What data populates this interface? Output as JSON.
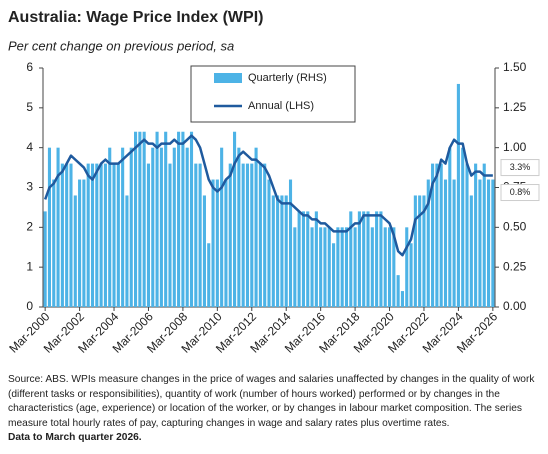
{
  "chart_data": {
    "type": "combo",
    "title": "Australia: Wage Price Index (WPI)",
    "subtitle": "Per cent change on previous period, sa",
    "notes": [
      "Source: ABS.  WPIs measure changes in the price of wages and salaries unaffected by changes in the quality of work (different tasks or responsibilities), quantity of work (number of hours worked) performed or by changes in the characteristics (age, experience) or location of the worker, or by changes in labour market composition. The series measure total hourly rates of pay, capturing changes in wage and salary rates plus overtime rates.",
      "Data to March quarter 2026."
    ],
    "categories": [
      "Mar-2000",
      null,
      null,
      null,
      null,
      null,
      null,
      null,
      "Mar-2002",
      null,
      null,
      null,
      null,
      null,
      null,
      null,
      "Mar-2004",
      null,
      null,
      null,
      null,
      null,
      null,
      null,
      "Mar-2006",
      null,
      null,
      null,
      null,
      null,
      null,
      null,
      "Mar-2008",
      null,
      null,
      null,
      null,
      null,
      null,
      null,
      "Mar-2010",
      null,
      null,
      null,
      null,
      null,
      null,
      null,
      "Mar-2012",
      null,
      null,
      null,
      null,
      null,
      null,
      null,
      "Mar-2014",
      null,
      null,
      null,
      null,
      null,
      null,
      null,
      "Mar-2016",
      null,
      null,
      null,
      null,
      null,
      null,
      null,
      "Mar-2018",
      null,
      null,
      null,
      null,
      null,
      null,
      null,
      "Mar-2020",
      null,
      null,
      null,
      null,
      null,
      null,
      null,
      "Mar-2022",
      null,
      null,
      null,
      null,
      null,
      null,
      null,
      "Mar-2024",
      null,
      null,
      null,
      null,
      null,
      null,
      null,
      "Mar-2026"
    ],
    "series": [
      {
        "name": "Quarterly (RHS)",
        "type": "bar",
        "axis": "y2",
        "color": "#4db3e6",
        "values": [
          0.6,
          1.0,
          0.8,
          1.0,
          0.9,
          0.9,
          0.9,
          0.7,
          0.8,
          0.8,
          0.9,
          0.9,
          0.9,
          0.9,
          0.9,
          1.0,
          0.9,
          0.9,
          1.0,
          0.7,
          1.0,
          1.1,
          1.1,
          1.1,
          0.9,
          1.0,
          1.1,
          1.0,
          1.1,
          0.9,
          1.0,
          1.1,
          1.1,
          1.0,
          1.1,
          0.9,
          0.9,
          0.7,
          0.4,
          0.8,
          0.8,
          1.0,
          0.8,
          0.9,
          1.1,
          1.0,
          0.9,
          0.9,
          0.9,
          1.0,
          0.9,
          0.9,
          0.8,
          0.7,
          0.7,
          0.7,
          0.7,
          0.8,
          0.5,
          0.6,
          0.6,
          0.6,
          0.5,
          0.6,
          0.5,
          0.5,
          0.5,
          0.4,
          0.5,
          0.5,
          0.5,
          0.6,
          0.5,
          0.6,
          0.6,
          0.6,
          0.5,
          0.6,
          0.6,
          0.5,
          0.5,
          0.5,
          0.2,
          0.1,
          0.5,
          0.4,
          0.7,
          0.7,
          0.7,
          0.8,
          0.9,
          0.9,
          0.9,
          0.8,
          1.0,
          0.8,
          1.4,
          1.0,
          0.9,
          0.7,
          0.9,
          0.8,
          0.9,
          0.8,
          0.8
        ],
        "value_labels": [
          null,
          null,
          null,
          null,
          null,
          null,
          null,
          null,
          null,
          null,
          null,
          null,
          null,
          null,
          null,
          null,
          null,
          null,
          null,
          null,
          null,
          null,
          null,
          null,
          null,
          null,
          null,
          null,
          null,
          null,
          null,
          null,
          null,
          null,
          null,
          null,
          null,
          null,
          null,
          null,
          null,
          null,
          null,
          null,
          null,
          null,
          null,
          null,
          null,
          null,
          null,
          null,
          null,
          null,
          null,
          null,
          null,
          null,
          null,
          null,
          null,
          null,
          null,
          null,
          null,
          null,
          null,
          null,
          null,
          null,
          null,
          null,
          null,
          null,
          null,
          null,
          null,
          null,
          null,
          null,
          null,
          null,
          null,
          null,
          null,
          null,
          null,
          null,
          null,
          null,
          null,
          null,
          null,
          null,
          null,
          null,
          null,
          null,
          null,
          null,
          null,
          null,
          null,
          null,
          "0.8%"
        ]
      },
      {
        "name": "Annual (LHS)",
        "type": "line",
        "color": "#1f5a9e",
        "values": [
          2.7,
          3.0,
          3.1,
          3.3,
          3.4,
          3.6,
          3.8,
          3.7,
          3.6,
          3.5,
          3.3,
          3.2,
          3.4,
          3.6,
          3.7,
          3.6,
          3.6,
          3.6,
          3.7,
          3.8,
          3.9,
          4.0,
          4.1,
          4.2,
          4.1,
          4.1,
          4.0,
          4.1,
          4.1,
          4.1,
          4.2,
          4.1,
          4.1,
          4.2,
          4.3,
          4.2,
          4.0,
          3.6,
          3.2,
          3.0,
          2.9,
          3.0,
          3.2,
          3.3,
          3.6,
          3.8,
          3.9,
          3.8,
          3.7,
          3.7,
          3.6,
          3.5,
          3.3,
          3.0,
          2.7,
          2.6,
          2.6,
          2.6,
          2.5,
          2.4,
          2.3,
          2.3,
          2.2,
          2.2,
          2.1,
          2.1,
          2.0,
          1.9,
          1.9,
          1.9,
          1.9,
          2.0,
          2.1,
          2.1,
          2.3,
          2.3,
          2.3,
          2.3,
          2.3,
          2.2,
          2.1,
          1.8,
          1.4,
          1.3,
          1.5,
          1.7,
          2.2,
          2.3,
          2.4,
          2.6,
          3.1,
          3.3,
          3.7,
          3.6,
          4.0,
          4.2,
          4.1,
          4.1,
          3.6,
          3.3,
          3.4,
          3.4,
          3.3,
          3.3,
          3.3
        ],
        "value_labels": [
          null,
          null,
          null,
          null,
          null,
          null,
          null,
          null,
          null,
          null,
          null,
          null,
          null,
          null,
          null,
          null,
          null,
          null,
          null,
          null,
          null,
          null,
          null,
          null,
          null,
          null,
          null,
          null,
          null,
          null,
          null,
          null,
          null,
          null,
          null,
          null,
          null,
          null,
          null,
          null,
          null,
          null,
          null,
          null,
          null,
          null,
          null,
          null,
          null,
          null,
          null,
          null,
          null,
          null,
          null,
          null,
          null,
          null,
          null,
          null,
          null,
          null,
          null,
          null,
          null,
          null,
          null,
          null,
          null,
          null,
          null,
          null,
          null,
          null,
          null,
          null,
          null,
          null,
          null,
          null,
          null,
          null,
          null,
          null,
          null,
          null,
          null,
          null,
          null,
          null,
          null,
          null,
          null,
          null,
          null,
          null,
          null,
          null,
          null,
          null,
          null,
          null,
          null,
          null,
          "3.3%"
        ]
      }
    ],
    "ylim": [
      0,
      6
    ],
    "yticks": [
      0,
      1,
      2,
      3,
      4,
      5,
      6
    ],
    "y2lim": [
      0,
      1.5
    ],
    "y2ticks": [
      {
        "value": 0,
        "label": "0.00"
      },
      {
        "value": 0.25,
        "label": "0.25"
      },
      {
        "value": 0.5,
        "label": "0.50"
      },
      {
        "value": 0.75,
        "label": "0.75"
      },
      {
        "value": 1,
        "label": "1.00"
      },
      {
        "value": 1.25,
        "label": "1.25"
      },
      {
        "value": 1.5,
        "label": "1.50"
      }
    ],
    "grid": false
  }
}
